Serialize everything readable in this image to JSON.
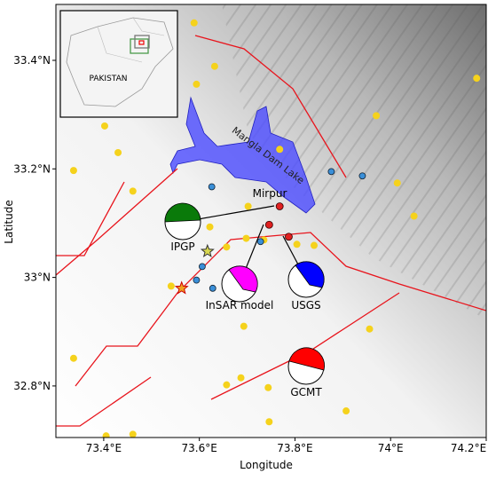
{
  "map": {
    "xlim": [
      73.3,
      74.2
    ],
    "ylim": [
      32.705,
      33.503
    ],
    "xticks": [
      {
        "value": 73.4,
        "label": "73.4°E"
      },
      {
        "value": 73.6,
        "label": "73.6°E"
      },
      {
        "value": 73.8,
        "label": "73.8°E"
      },
      {
        "value": 74.0,
        "label": "74°E"
      },
      {
        "value": 74.2,
        "label": "74.2°E"
      }
    ],
    "yticks": [
      {
        "value": 32.8,
        "label": "32.8°N"
      },
      {
        "value": 33.0,
        "label": "33°N"
      },
      {
        "value": 33.2,
        "label": "33.2°N"
      },
      {
        "value": 33.4,
        "label": "33.4°N"
      }
    ],
    "xlabel": "Longitude",
    "ylabel": "Latitude",
    "inset_label": "PAKISTAN",
    "lake_label": "Mangla Dam Lake",
    "city_label": "Mirpur",
    "mechanisms": [
      "IPGP",
      "InSAR model",
      "USGS",
      "GCMT"
    ],
    "events": [
      [
        73.589,
        33.469
      ],
      [
        73.632,
        33.389
      ],
      [
        73.594,
        33.356
      ],
      [
        73.402,
        33.279
      ],
      [
        73.43,
        33.23
      ],
      [
        73.337,
        33.197
      ],
      [
        73.461,
        33.159
      ],
      [
        73.97,
        33.298
      ],
      [
        74.014,
        33.174
      ],
      [
        74.049,
        33.113
      ],
      [
        74.18,
        33.367
      ],
      [
        73.768,
        33.236
      ],
      [
        73.622,
        33.093
      ],
      [
        73.702,
        33.131
      ],
      [
        73.657,
        33.056
      ],
      [
        73.698,
        33.072
      ],
      [
        73.735,
        33.069
      ],
      [
        73.804,
        33.061
      ],
      [
        73.84,
        33.059
      ],
      [
        73.541,
        32.984
      ],
      [
        73.693,
        32.91
      ],
      [
        73.956,
        32.905
      ],
      [
        73.337,
        32.851
      ],
      [
        73.657,
        32.802
      ],
      [
        73.687,
        32.815
      ],
      [
        73.744,
        32.797
      ],
      [
        73.907,
        32.754
      ],
      [
        73.746,
        32.734
      ],
      [
        73.461,
        32.711
      ],
      [
        73.405,
        32.708
      ]
    ],
    "blue_events": [
      [
        73.626,
        33.167
      ],
      [
        73.876,
        33.195
      ],
      [
        73.941,
        33.187
      ],
      [
        73.728,
        33.066
      ],
      [
        73.606,
        33.02
      ],
      [
        73.594,
        32.995
      ],
      [
        73.628,
        32.98
      ]
    ],
    "red_events": [
      [
        73.768,
        33.131
      ],
      [
        73.746,
        33.097
      ],
      [
        73.787,
        33.075
      ]
    ],
    "stars": [
      [
        73.617,
        33.048
      ],
      [
        73.563,
        32.98
      ]
    ]
  }
}
